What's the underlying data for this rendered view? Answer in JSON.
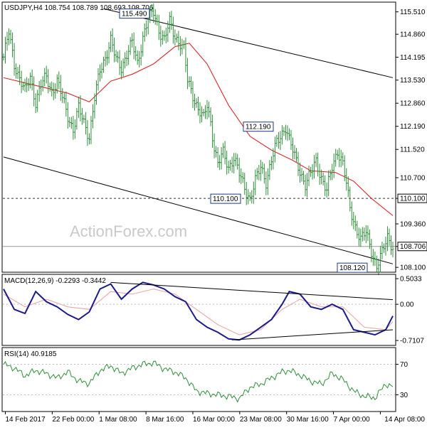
{
  "chart_data": [
    {
      "type": "candlestick",
      "title": "USDJPY,H4  108.754 108.789 108.693 108.706",
      "watermark": "ActionForex.com",
      "y_ticks": [
        "115.510",
        "114.860",
        "114.195",
        "113.530",
        "112.860",
        "112.190",
        "111.520",
        "110.700",
        "110.100",
        "109.360",
        "108.706",
        "108.100"
      ],
      "ylim": [
        108.0,
        115.75
      ],
      "x_ticks": [
        "14 Feb 2017",
        "22 Feb 00:00",
        "1 Mar 08:00",
        "8 Mar 16:00",
        "16 Mar 00:00",
        "23 Mar 08:00",
        "30 Mar 16:00",
        "7 Apr 00:00",
        "14 Apr 08:00"
      ],
      "annotations": [
        {
          "label": "115.490",
          "value": 115.49
        },
        {
          "label": "112.190",
          "value": 112.19
        },
        {
          "label": "110.100",
          "value": 110.1
        },
        {
          "label": "108.120",
          "value": 108.12
        }
      ],
      "horizontal_lines": [
        {
          "label": "110.100",
          "value": 110.1,
          "style": "dashed"
        },
        {
          "label": "108.706",
          "value": 108.706,
          "style": "solid"
        }
      ],
      "price_path": [
        [
          0,
          114.2
        ],
        [
          3,
          114.9
        ],
        [
          6,
          114.0
        ],
        [
          9,
          113.6
        ],
        [
          12,
          113.2
        ],
        [
          15,
          113.6
        ],
        [
          18,
          112.9
        ],
        [
          21,
          113.4
        ],
        [
          24,
          113.6
        ],
        [
          27,
          113.2
        ],
        [
          30,
          113.5
        ],
        [
          33,
          113.0
        ],
        [
          36,
          112.5
        ],
        [
          39,
          112.1
        ],
        [
          42,
          112.7
        ],
        [
          45,
          112.3
        ],
        [
          48,
          111.9
        ],
        [
          51,
          113.0
        ],
        [
          54,
          113.8
        ],
        [
          57,
          114.2
        ],
        [
          60,
          114.7
        ],
        [
          63,
          114.1
        ],
        [
          66,
          113.9
        ],
        [
          69,
          114.3
        ],
        [
          72,
          114.6
        ],
        [
          75,
          114.0
        ],
        [
          78,
          114.8
        ],
        [
          81,
          115.3
        ],
        [
          84,
          115.49
        ],
        [
          87,
          115.0
        ],
        [
          90,
          114.7
        ],
        [
          93,
          115.2
        ],
        [
          96,
          114.8
        ],
        [
          99,
          114.6
        ],
        [
          101,
          114.4
        ],
        [
          103,
          113.5
        ],
        [
          106,
          113.1
        ],
        [
          109,
          112.7
        ],
        [
          112,
          112.4
        ],
        [
          114,
          112.8
        ],
        [
          116,
          112.3
        ],
        [
          118,
          111.6
        ],
        [
          120,
          111.1
        ],
        [
          123,
          111.4
        ],
        [
          126,
          111.0
        ],
        [
          129,
          111.3
        ],
        [
          132,
          110.8
        ],
        [
          135,
          110.4
        ],
        [
          138,
          110.1
        ],
        [
          141,
          110.6
        ],
        [
          144,
          111.0
        ],
        [
          147,
          110.6
        ],
        [
          150,
          111.2
        ],
        [
          153,
          111.7
        ],
        [
          156,
          112.0
        ],
        [
          158,
          112.19
        ],
        [
          160,
          111.8
        ],
        [
          163,
          111.3
        ],
        [
          166,
          110.9
        ],
        [
          169,
          110.5
        ],
        [
          172,
          110.8
        ],
        [
          175,
          111.2
        ],
        [
          178,
          110.7
        ],
        [
          181,
          110.3
        ],
        [
          184,
          111.0
        ],
        [
          187,
          111.5
        ],
        [
          190,
          111.1
        ],
        [
          192,
          110.5
        ],
        [
          194,
          109.8
        ],
        [
          197,
          109.3
        ],
        [
          200,
          108.9
        ],
        [
          203,
          109.1
        ],
        [
          206,
          108.6
        ],
        [
          209,
          108.12
        ],
        [
          212,
          108.5
        ],
        [
          215,
          109.0
        ],
        [
          218,
          108.706
        ]
      ],
      "ma_path": [
        [
          0,
          113.6
        ],
        [
          12,
          113.45
        ],
        [
          24,
          113.3
        ],
        [
          36,
          113.15
        ],
        [
          48,
          112.9
        ],
        [
          60,
          113.5
        ],
        [
          72,
          113.7
        ],
        [
          84,
          114.0
        ],
        [
          96,
          114.5
        ],
        [
          104,
          114.6
        ],
        [
          114,
          114.0
        ],
        [
          126,
          112.8
        ],
        [
          138,
          111.9
        ],
        [
          150,
          111.5
        ],
        [
          162,
          111.2
        ],
        [
          172,
          110.9
        ],
        [
          186,
          110.85
        ],
        [
          196,
          110.6
        ],
        [
          206,
          110.1
        ],
        [
          218,
          109.6
        ]
      ],
      "channel_upper": [
        [
          56,
          115.6
        ],
        [
          218,
          113.6
        ]
      ],
      "channel_lower": [
        [
          0,
          111.3
        ],
        [
          218,
          108.2
        ]
      ]
    },
    {
      "type": "line",
      "title": "MACD(12,26,9) -0.2293 -0.3442",
      "y_ticks": [
        "0.5033",
        "0.00",
        "-0.7107"
      ],
      "ylim": [
        -0.78,
        0.56
      ],
      "macd_path": [
        [
          0,
          0.3
        ],
        [
          6,
          -0.1
        ],
        [
          12,
          -0.18
        ],
        [
          18,
          0.25
        ],
        [
          24,
          0.05
        ],
        [
          30,
          -0.05
        ],
        [
          36,
          -0.2
        ],
        [
          42,
          -0.3
        ],
        [
          48,
          -0.15
        ],
        [
          54,
          0.3
        ],
        [
          60,
          0.4
        ],
        [
          66,
          0.1
        ],
        [
          72,
          0.3
        ],
        [
          78,
          0.43
        ],
        [
          84,
          0.38
        ],
        [
          90,
          0.3
        ],
        [
          96,
          0.15
        ],
        [
          102,
          0.05
        ],
        [
          108,
          -0.3
        ],
        [
          114,
          -0.45
        ],
        [
          120,
          -0.55
        ],
        [
          126,
          -0.68
        ],
        [
          132,
          -0.7
        ],
        [
          138,
          -0.6
        ],
        [
          144,
          -0.45
        ],
        [
          150,
          -0.3
        ],
        [
          156,
          0.0
        ],
        [
          160,
          0.25
        ],
        [
          166,
          0.2
        ],
        [
          172,
          -0.05
        ],
        [
          178,
          -0.1
        ],
        [
          184,
          0.0
        ],
        [
          190,
          -0.1
        ],
        [
          196,
          -0.5
        ],
        [
          202,
          -0.55
        ],
        [
          208,
          -0.6
        ],
        [
          214,
          -0.5
        ],
        [
          218,
          -0.23
        ]
      ],
      "signal_path": [
        [
          0,
          0.2
        ],
        [
          12,
          -0.05
        ],
        [
          24,
          0.1
        ],
        [
          36,
          -0.05
        ],
        [
          48,
          -0.1
        ],
        [
          60,
          0.25
        ],
        [
          72,
          0.2
        ],
        [
          84,
          0.3
        ],
        [
          96,
          0.2
        ],
        [
          108,
          -0.1
        ],
        [
          120,
          -0.4
        ],
        [
          132,
          -0.6
        ],
        [
          144,
          -0.5
        ],
        [
          156,
          -0.1
        ],
        [
          166,
          0.1
        ],
        [
          178,
          -0.05
        ],
        [
          190,
          -0.05
        ],
        [
          202,
          -0.45
        ],
        [
          214,
          -0.5
        ],
        [
          218,
          -0.34
        ]
      ],
      "trend_upper": [
        [
          60,
          0.43
        ],
        [
          218,
          0.09
        ]
      ],
      "trend_lower": [
        [
          128,
          -0.7
        ],
        [
          218,
          -0.5
        ]
      ]
    },
    {
      "type": "line",
      "title": "RSI(14) 40.9185",
      "y_ticks": [
        "70",
        "30"
      ],
      "ylim": [
        10,
        90
      ],
      "rsi_path": [
        [
          0,
          70
        ],
        [
          6,
          65
        ],
        [
          12,
          55
        ],
        [
          18,
          62
        ],
        [
          24,
          58
        ],
        [
          30,
          52
        ],
        [
          36,
          60
        ],
        [
          42,
          48
        ],
        [
          48,
          45
        ],
        [
          54,
          62
        ],
        [
          60,
          68
        ],
        [
          66,
          58
        ],
        [
          72,
          65
        ],
        [
          78,
          70
        ],
        [
          84,
          72
        ],
        [
          90,
          64
        ],
        [
          96,
          60
        ],
        [
          102,
          52
        ],
        [
          108,
          35
        ],
        [
          114,
          32
        ],
        [
          120,
          30
        ],
        [
          126,
          28
        ],
        [
          132,
          25
        ],
        [
          138,
          40
        ],
        [
          144,
          44
        ],
        [
          150,
          52
        ],
        [
          156,
          60
        ],
        [
          160,
          62
        ],
        [
          166,
          56
        ],
        [
          172,
          48
        ],
        [
          178,
          44
        ],
        [
          184,
          58
        ],
        [
          190,
          50
        ],
        [
          196,
          35
        ],
        [
          202,
          28
        ],
        [
          208,
          26
        ],
        [
          214,
          44
        ],
        [
          218,
          40.9
        ]
      ]
    }
  ],
  "colors": {
    "bars": "#2f8f3a",
    "moving_average": "#e01010",
    "macd": "#1a1a8c",
    "signal": "#e8a0a0",
    "rsi": "#2f8f3a",
    "trendline": "#000000",
    "annotation_border": "#1a3a8a"
  }
}
